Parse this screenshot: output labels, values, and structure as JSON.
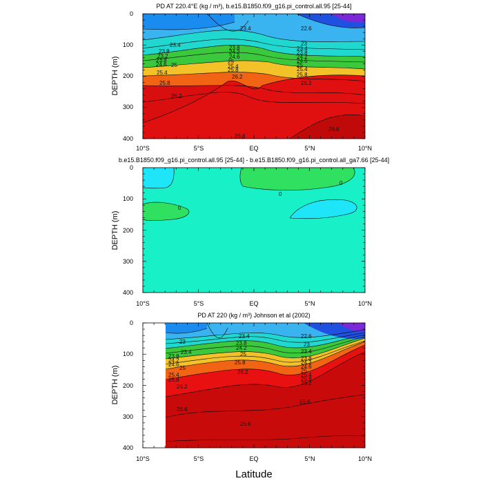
{
  "chart_data": [
    {
      "type": "contour",
      "title": "PD AT 220.4°E (kg / m³), b.e15.B1850.f09_g16.pi_control.all.95 [25-44]",
      "ylabel": "DEPTH (m)",
      "xticks": [
        "10°S",
        "5°S",
        "EQ",
        "5°N",
        "10°N"
      ],
      "yticks": [
        "0",
        "100",
        "200",
        "300",
        "400"
      ],
      "xlim": [
        -10,
        10
      ],
      "ylim": [
        0,
        400
      ],
      "contour_labels": [
        "23.4",
        "23.4",
        "23.8",
        "23.2",
        "23.8",
        "24.6",
        "25",
        "25.4",
        "25.8",
        "26.2",
        "23.8",
        "24.2",
        "24.6",
        "25",
        "25.4",
        "25.8",
        "26.2",
        "22.6",
        "23",
        "23.4",
        "23.8",
        "24.2",
        "24.6",
        "25",
        "25.4",
        "25.8",
        "26.2",
        "26.6",
        "26.6"
      ]
    },
    {
      "type": "contour",
      "title": "b.e15.B1850.f09_g16.pi_control.all.95 [25-44] - b.e15.B1850.f09_g16.pi_control.all_ga7.66 [25-44]",
      "ylabel": "DEPTH (m)",
      "xticks": [
        "10°S",
        "5°S",
        "EQ",
        "5°N",
        "10°N"
      ],
      "yticks": [
        "0",
        "100",
        "200",
        "300",
        "400"
      ],
      "xlim": [
        -10,
        10
      ],
      "ylim": [
        0,
        400
      ],
      "contour_labels": [
        "0",
        "0",
        "0"
      ]
    },
    {
      "type": "contour",
      "title": "PD AT 220 (kg / m³) Johnson et al (2002)",
      "ylabel": "DEPTH (m)",
      "xlabel": "Latitude",
      "xticks": [
        "10°S",
        "5°S",
        "EQ",
        "5°N",
        "10°N"
      ],
      "yticks": [
        "0",
        "100",
        "200",
        "300",
        "400"
      ],
      "xlim": [
        -10,
        10
      ],
      "ylim": [
        0,
        400
      ],
      "contour_labels": [
        "23",
        "23.4",
        "23.8",
        "24.2",
        "24.6",
        "25",
        "25.4",
        "25.8",
        "26.2",
        "23.4",
        "23.8",
        "24.2",
        "25",
        "25.8",
        "26.2",
        "22.6",
        "23",
        "23.4",
        "23.8",
        "24.2",
        "24.6",
        "25",
        "25.4",
        "25.8",
        "26.2",
        "26.6",
        "26.6",
        "26.6"
      ]
    }
  ]
}
